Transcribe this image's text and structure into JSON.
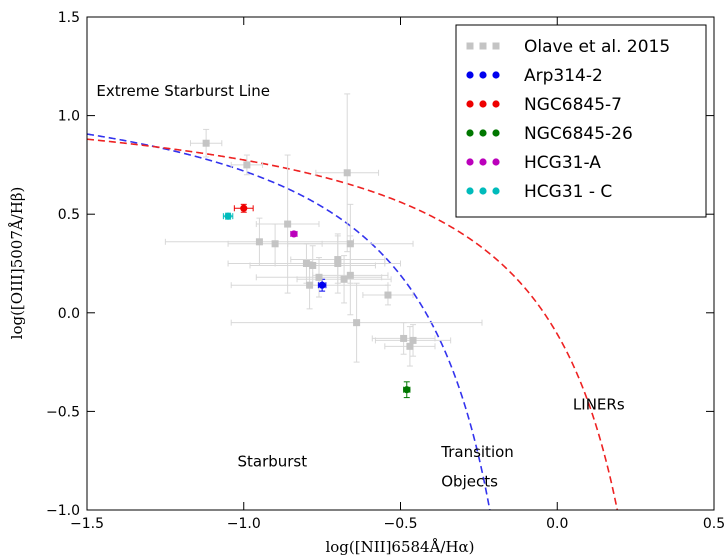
{
  "chart_data": {
    "type": "scatter",
    "title": "",
    "xlabel": "log([NII]6584Å/Hα)",
    "ylabel": "log([OIII]5007Å/Hβ)",
    "xlim": [
      -1.5,
      0.5
    ],
    "ylim": [
      -1.0,
      1.5
    ],
    "x_ticks": [
      -1.5,
      -1.0,
      -0.5,
      0.0,
      0.5
    ],
    "x_tick_labels": [
      "−1.5",
      "−1.0",
      "−0.5",
      "0.0",
      "0.5"
    ],
    "y_ticks": [
      -1.0,
      -0.5,
      0.0,
      0.5,
      1.0,
      1.5
    ],
    "y_tick_labels": [
      "−1.0",
      "−0.5",
      "0.0",
      "0.5",
      "1.0",
      "1.5"
    ],
    "grid": false,
    "legend_position": "top-right",
    "annotations": [
      {
        "text": "Extreme Starburst Line",
        "x": -1.47,
        "y": 1.1
      },
      {
        "text": "Starburst",
        "x": -1.02,
        "y": -0.78
      },
      {
        "text": "Transition",
        "x": -0.37,
        "y": -0.73
      },
      {
        "text": "Objects",
        "x": -0.37,
        "y": -0.88
      },
      {
        "text": "LINERs",
        "x": 0.05,
        "y": -0.49
      }
    ],
    "curves": [
      {
        "name": "extreme-starburst-line",
        "color": "#3333ee",
        "style": "dashed",
        "formula": "0.61/(x-0.05)+1.3"
      },
      {
        "name": "transition-line",
        "color": "#ee2222",
        "style": "dashed",
        "formula": "0.61/(x-0.47)+1.19"
      }
    ],
    "series": [
      {
        "name": "Olave et al. 2015",
        "color": "#c4c4c4",
        "marker": "square",
        "points": [
          {
            "x": -1.12,
            "y": 0.86,
            "xerr": 0.05,
            "yerr": 0.07
          },
          {
            "x": -0.99,
            "y": 0.75,
            "xerr": 0.05,
            "yerr": 0.05
          },
          {
            "x": -0.95,
            "y": 0.36,
            "xerr": 0.3,
            "yerr": 0.12
          },
          {
            "x": -0.9,
            "y": 0.35,
            "xerr": 0.15,
            "yerr": 0.1
          },
          {
            "x": -0.86,
            "y": 0.45,
            "xerr": 0.1,
            "yerr": 0.35
          },
          {
            "x": -0.8,
            "y": 0.25,
            "xerr": 0.25,
            "yerr": 0.1
          },
          {
            "x": -0.79,
            "y": 0.14,
            "xerr": 0.25,
            "yerr": 0.12
          },
          {
            "x": -0.78,
            "y": 0.24,
            "xerr": 0.2,
            "yerr": 0.1
          },
          {
            "x": -0.76,
            "y": 0.18,
            "xerr": 0.2,
            "yerr": 0.1
          },
          {
            "x": -0.7,
            "y": 0.25,
            "xerr": 0.2,
            "yerr": 0.15
          },
          {
            "x": -0.7,
            "y": 0.27,
            "xerr": 0.15,
            "yerr": 0.12
          },
          {
            "x": -0.68,
            "y": 0.17,
            "xerr": 0.15,
            "yerr": 0.12
          },
          {
            "x": -0.67,
            "y": 0.71,
            "xerr": 0.1,
            "yerr": 0.4
          },
          {
            "x": -0.66,
            "y": 0.19,
            "xerr": 0.12,
            "yerr": 0.2
          },
          {
            "x": -0.66,
            "y": 0.35,
            "xerr": 0.2,
            "yerr": 0.2
          },
          {
            "x": -0.64,
            "y": -0.05,
            "xerr": 0.4,
            "yerr": 0.2
          },
          {
            "x": -0.54,
            "y": 0.09,
            "xerr": 0.08,
            "yerr": 0.05
          },
          {
            "x": -0.49,
            "y": -0.13,
            "xerr": 0.1,
            "yerr": 0.08
          },
          {
            "x": -0.47,
            "y": -0.17,
            "xerr": 0.08,
            "yerr": 0.1
          },
          {
            "x": -0.46,
            "y": -0.14,
            "xerr": 0.12,
            "yerr": 0.08
          }
        ]
      },
      {
        "name": "Arp314-2",
        "color": "#0000ee",
        "marker": "circle",
        "points": [
          {
            "x": -0.75,
            "y": 0.14,
            "xerr": 0.012,
            "yerr": 0.03
          }
        ]
      },
      {
        "name": "NGC6845-7",
        "color": "#ee0000",
        "marker": "circle",
        "points": [
          {
            "x": -1.0,
            "y": 0.53,
            "xerr": 0.03,
            "yerr": 0.02
          }
        ]
      },
      {
        "name": "NGC6845-26",
        "color": "#007700",
        "marker": "circle",
        "points": [
          {
            "x": -0.48,
            "y": -0.39,
            "xerr": 0.01,
            "yerr": 0.04
          }
        ]
      },
      {
        "name": "HCG31-A",
        "color": "#bb00bb",
        "marker": "circle",
        "points": [
          {
            "x": -0.84,
            "y": 0.4,
            "xerr": 0.01,
            "yerr": 0.01
          }
        ]
      },
      {
        "name": "HCG31 - C",
        "color": "#00bbbb",
        "marker": "circle",
        "points": [
          {
            "x": -1.05,
            "y": 0.49,
            "xerr": 0.015,
            "yerr": 0.015
          }
        ]
      }
    ]
  }
}
